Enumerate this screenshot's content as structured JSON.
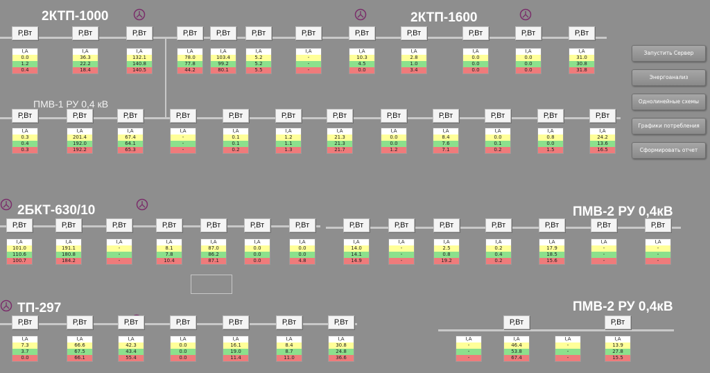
{
  "colors": {
    "background": "#8e8e8e",
    "bus": "#c9c9c9",
    "header": "#ffffff",
    "voltage_a": "#ffff99",
    "voltage_b": "#8ce08c",
    "voltage_c": "#ef7b7b",
    "transformer": "#7a2d6a"
  },
  "titles": {
    "s1": "2КТП-1000",
    "s2": "2КТП-1600",
    "s3": "ПМВ-1 РУ 0,4 кВ",
    "s4": "2БКТ-630/10",
    "s5": "ПМВ-2 РУ 0,4кВ",
    "s6": "ТП-297",
    "s7": "ПМВ-2 РУ 0,4кВ"
  },
  "power_label": "Р,Вт",
  "current_label": "I,A",
  "sidebar": {
    "start_server": "Запустить Сервер",
    "energy_analysis": "Энергоанализ",
    "single_line": "Однолинейные схемы",
    "consumption_graphs": "Графики потребления",
    "make_report": "Сформировать отчет"
  },
  "rows": [
    {
      "id": "r1",
      "feeders": [
        {
          "a": "0.0",
          "b": "1.2",
          "c": "0.4"
        },
        {
          "a": "36.3",
          "b": "22.2",
          "c": "18.4"
        },
        {
          "a": "132.1",
          "b": "140.8",
          "c": "140.5"
        },
        {
          "a": "78.0",
          "b": "77.8",
          "c": "44.2"
        },
        {
          "a": "103.4",
          "b": "99.2",
          "c": "80.1"
        },
        {
          "a": "5.2",
          "b": "5.2",
          "c": "5.5"
        },
        {
          "a": "-",
          "b": "-",
          "c": "-"
        },
        {
          "a": "10.3",
          "b": "4.5",
          "c": "0.0"
        },
        {
          "a": "2.8",
          "b": "1.0",
          "c": "3.4"
        },
        {
          "a": "0.0",
          "b": "0.0",
          "c": "0.0"
        },
        {
          "a": "0.0",
          "b": "0.0",
          "c": "0.0"
        },
        {
          "a": "31.0",
          "b": "30.8",
          "c": "31.8"
        }
      ]
    },
    {
      "id": "r2",
      "feeders": [
        {
          "a": "0.3",
          "b": "0.4",
          "c": "0.3"
        },
        {
          "a": "201.4",
          "b": "192.0",
          "c": "192.2"
        },
        {
          "a": "67.4",
          "b": "64.1",
          "c": "65.3"
        },
        {
          "a": "-",
          "b": "-",
          "c": "-"
        },
        {
          "a": "0.1",
          "b": "0.1",
          "c": "0.2"
        },
        {
          "a": "1.2",
          "b": "1.1",
          "c": "1.3"
        },
        {
          "a": "21.3",
          "b": "21.3",
          "c": "21.7"
        },
        {
          "a": "0.0",
          "b": "0.0",
          "c": "1.2"
        },
        {
          "a": "8.4",
          "b": "7.6",
          "c": "7.1"
        },
        {
          "a": "0.0",
          "b": "0.1",
          "c": "0.2"
        },
        {
          "a": "0.8",
          "b": "0.0",
          "c": "1.5"
        },
        {
          "a": "24.2",
          "b": "13.6",
          "c": "16.5"
        }
      ]
    },
    {
      "id": "r3",
      "feeders": [
        {
          "a": "101.0",
          "b": "110.6",
          "c": "100.7"
        },
        {
          "a": "191.1",
          "b": "180.8",
          "c": "184.2"
        },
        {
          "a": "-",
          "b": "-",
          "c": "-"
        },
        {
          "a": "8.1",
          "b": "7.8",
          "c": "10.4"
        },
        {
          "a": "87.0",
          "b": "86.2",
          "c": "87.1"
        },
        {
          "a": "0.0",
          "b": "0.0",
          "c": "0.0"
        },
        {
          "a": "0.0",
          "b": "0.0",
          "c": "4.8"
        },
        {
          "a": "14.0",
          "b": "14.1",
          "c": "14.9"
        },
        {
          "a": "-",
          "b": "-",
          "c": "-"
        },
        {
          "a": "2.5",
          "b": "0.8",
          "c": "19.2"
        },
        {
          "a": "0.2",
          "b": "0.4",
          "c": "0.2"
        },
        {
          "a": "17.9",
          "b": "18.5",
          "c": "15.6"
        },
        {
          "a": "-",
          "b": "-",
          "c": "-"
        },
        {
          "a": "-",
          "b": "-",
          "c": "-"
        }
      ]
    },
    {
      "id": "r4",
      "feeders": [
        {
          "a": "7.3",
          "b": "3.7",
          "c": "0.0"
        },
        {
          "a": "66.6",
          "b": "67.5",
          "c": "66.1"
        },
        {
          "a": "42.3",
          "b": "43.4",
          "c": "55.4"
        },
        {
          "a": "0.0",
          "b": "0.0",
          "c": "0.0"
        },
        {
          "a": "16.1",
          "b": "19.0",
          "c": "11.4"
        },
        {
          "a": "8.4",
          "b": "8.7",
          "c": "11.0"
        },
        {
          "a": "30.8",
          "b": "24.8",
          "c": "36.6"
        }
      ]
    },
    {
      "id": "r5",
      "feeders": [
        {
          "a": "-",
          "b": "-",
          "c": "-"
        },
        {
          "a": "46.4",
          "b": "53.8",
          "c": "67.4"
        },
        {
          "a": "-",
          "b": "-",
          "c": "-"
        },
        {
          "a": "13.9",
          "b": "27.8",
          "c": "15.5"
        }
      ]
    }
  ]
}
